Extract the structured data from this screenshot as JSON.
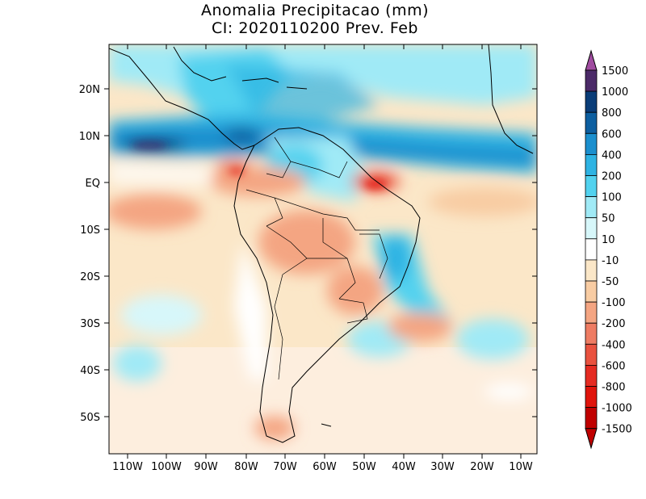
{
  "title": {
    "line1": "Anomalia Precipitacao (mm)",
    "line2": "CI: 2020110200 Prev. Feb"
  },
  "axes": {
    "lat_labels": [
      "20N",
      "10N",
      "EQ",
      "10S",
      "20S",
      "30S",
      "40S",
      "50S"
    ],
    "lon_labels": [
      "110W",
      "100W",
      "90W",
      "80W",
      "70W",
      "60W",
      "50W",
      "40W",
      "30W",
      "20W",
      "10W"
    ]
  },
  "legend": {
    "labels": [
      "1500",
      "1000",
      "800",
      "600",
      "400",
      "200",
      "100",
      "50",
      "10",
      "-10",
      "-50",
      "-100",
      "-200",
      "-400",
      "-600",
      "-800",
      "-1000",
      "-1500"
    ],
    "colors": [
      "#a04ca0",
      "#4b2a68",
      "#0a3d78",
      "#0d5fa0",
      "#1b8fce",
      "#2eb3e3",
      "#52d2ef",
      "#a0eaf6",
      "#d7f7fa",
      "#ffffff",
      "#fbe7c8",
      "#f8cca3",
      "#f4a582",
      "#ee7c63",
      "#e9523f",
      "#e52b22",
      "#e0140c",
      "#c00000"
    ]
  }
}
